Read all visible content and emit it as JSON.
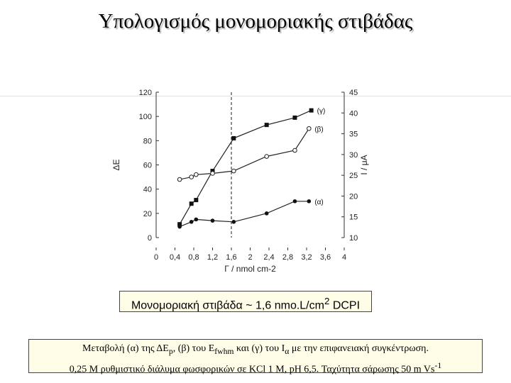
{
  "slide": {
    "title": "Υπολογισμός μονομοριακής στιβάδας",
    "caption_box": {
      "text": "Μονομοριακή στιβάδα ~ 1,6 nmo.L/cm",
      "sup": "2",
      "suffix": " DCPI"
    },
    "description": {
      "line1_parts": [
        "Μεταβολή (α) της ΔE",
        "p",
        ", (β) του E",
        "fwhm",
        " και (γ) του I",
        "α",
        " με την επιφανειακή συγκέντρωση."
      ],
      "line2_parts": [
        "0,25 M ρυθμιστικό διάλυμα φωσφορικών σε KCl 1 M,  pH 6,5. Ταχύτητα σάρωσης 50 m Vs",
        "-1"
      ]
    }
  },
  "chart_data": {
    "type": "line",
    "xlabel": "Γ / nmol cm-2",
    "y_left_label": "ΔE",
    "y_right_label": "I / μA",
    "xlim": [
      0,
      4
    ],
    "ylim_left": [
      0,
      120
    ],
    "ylim_right": [
      10,
      45
    ],
    "x_ticks": [
      "0",
      "0,4",
      "0,8",
      "1,2",
      "1,6",
      "2",
      "2,4",
      "2,8",
      "3,2",
      "3,6",
      "4"
    ],
    "y_left_ticks": [
      "0",
      "20",
      "40",
      "60",
      "80",
      "100",
      "120"
    ],
    "y_right_ticks": [
      "10",
      "15",
      "20",
      "25",
      "30",
      "35",
      "40",
      "45"
    ],
    "monolayer_x": 1.6,
    "series": [
      {
        "name": "(γ)",
        "axis": "left",
        "marker": "filled-square",
        "points": [
          [
            0.5,
            11
          ],
          [
            0.75,
            28
          ],
          [
            0.85,
            31
          ],
          [
            1.2,
            55
          ],
          [
            1.65,
            82
          ],
          [
            2.35,
            93
          ],
          [
            2.95,
            99
          ],
          [
            3.3,
            105
          ]
        ]
      },
      {
        "name": "(β)",
        "axis": "left",
        "marker": "open-circle",
        "points": [
          [
            0.5,
            48
          ],
          [
            0.75,
            50
          ],
          [
            0.85,
            52
          ],
          [
            1.2,
            53
          ],
          [
            1.65,
            55
          ],
          [
            2.35,
            67
          ],
          [
            2.95,
            72
          ],
          [
            3.25,
            90
          ]
        ]
      },
      {
        "name": "(α)",
        "axis": "left",
        "marker": "filled-circle",
        "points": [
          [
            0.5,
            9
          ],
          [
            0.75,
            13
          ],
          [
            0.85,
            15
          ],
          [
            1.2,
            14
          ],
          [
            1.65,
            13
          ],
          [
            2.35,
            20
          ],
          [
            2.95,
            30
          ],
          [
            3.25,
            30
          ]
        ]
      }
    ]
  }
}
